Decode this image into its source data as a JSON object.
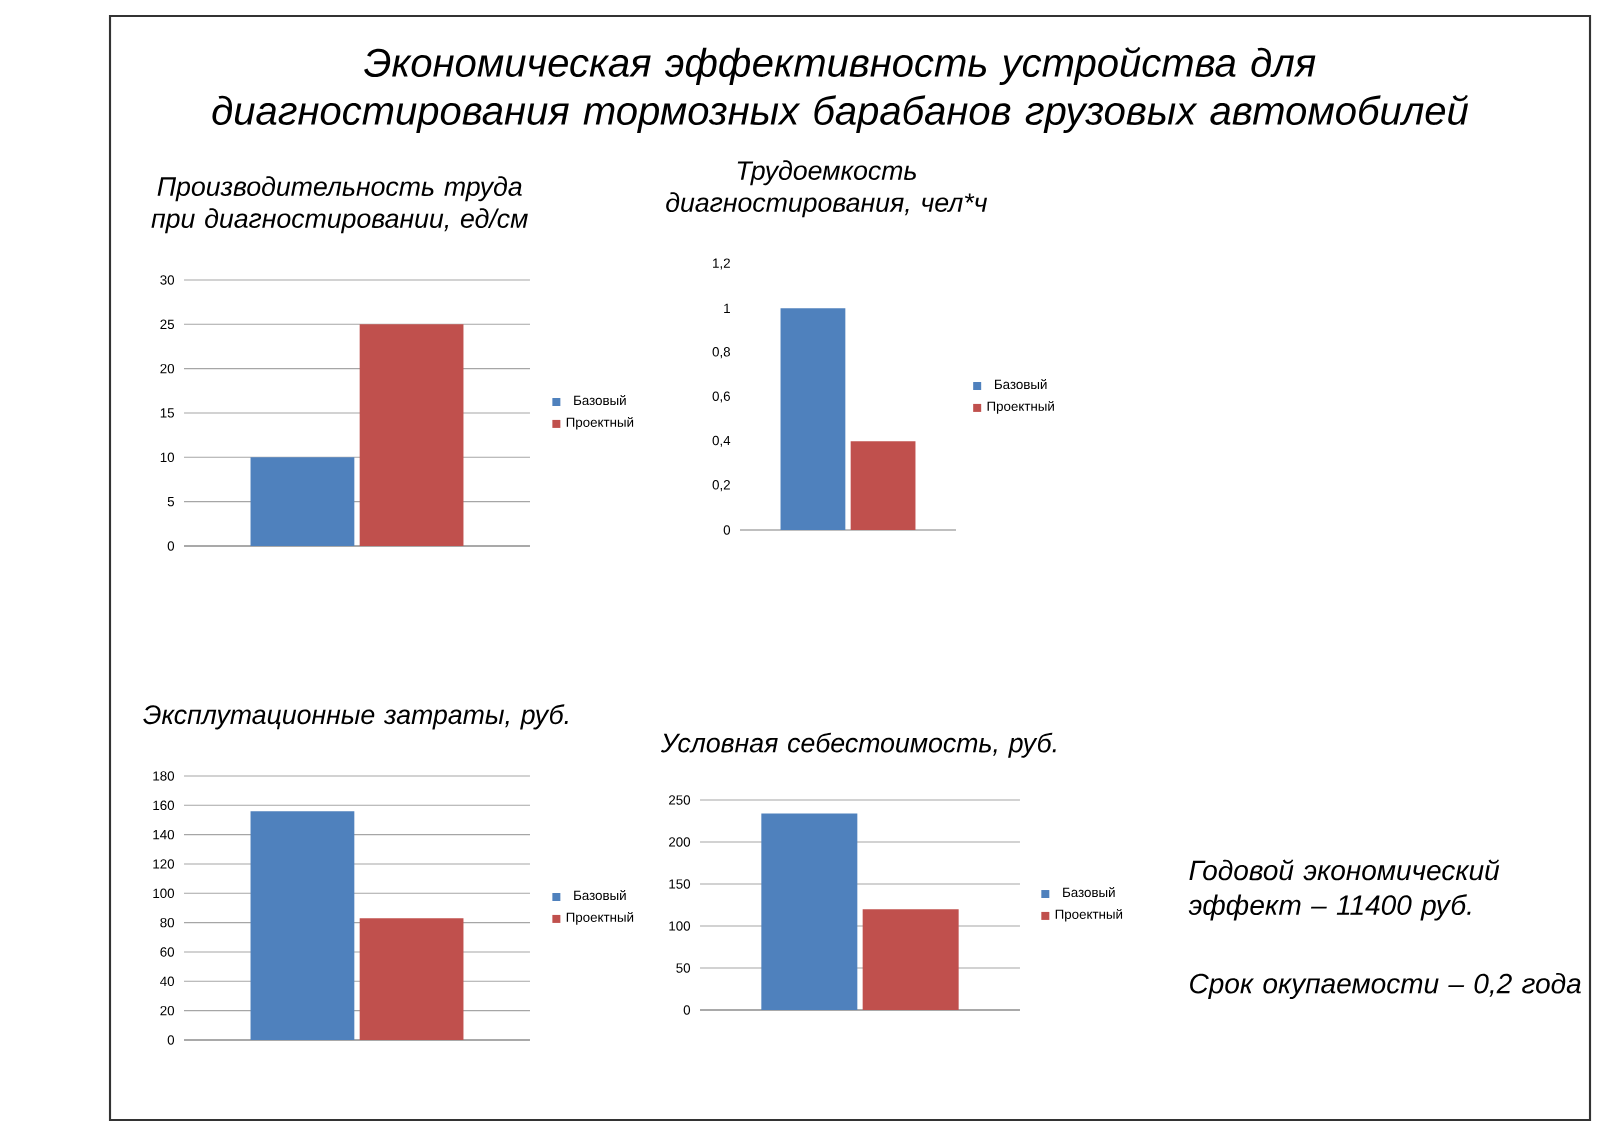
{
  "chart_data": [
    {
      "type": "other",
      "title": "Экономическая эффективность устройства для диагностирования тормозных барабанов грузовых автомобилей",
      "annotations": [
        "Годовой экономический эффект – 11400 руб.",
        "Срок окупаемости – 0,2 года"
      ]
    },
    {
      "type": "bar",
      "title": "Производительность труда при диагностировании, ед/см",
      "categories": [
        null
      ],
      "series": [
        {
          "name": "Базовый",
          "color": "#4f81bd",
          "values": [
            10
          ]
        },
        {
          "name": "Проектный",
          "color": "#c0504d",
          "values": [
            25
          ]
        }
      ],
      "ylim": [
        0,
        30
      ],
      "yticks": [
        0,
        5,
        10,
        15,
        20,
        25,
        30
      ],
      "grid": "y",
      "legend": "right",
      "tick_labels": "y"
    },
    {
      "type": "bar",
      "title": "Трудоемкость диагностирования, чел*ч",
      "categories": [
        null
      ],
      "series": [
        {
          "name": "Базовый",
          "color": "#4f81bd",
          "values": [
            1
          ]
        },
        {
          "name": "Проектный",
          "color": "#c0504d",
          "values": [
            0.4
          ]
        }
      ],
      "ylim": [
        0,
        1.2
      ],
      "yticks": [
        {
          "value": 0,
          "label": "0"
        },
        {
          "value": 0.2,
          "label": "0,2"
        },
        {
          "value": 0.4,
          "label": "0,4"
        },
        {
          "value": 0.6,
          "label": "0,6"
        },
        {
          "value": 0.8,
          "label": "0,8"
        },
        {
          "value": 1,
          "label": "1"
        },
        {
          "value": 1.2,
          "label": "1,2"
        }
      ],
      "legend": "right",
      "tick_labels": "y"
    },
    {
      "type": "bar",
      "title": "Эксплутационные затраты, руб.",
      "categories": [
        null
      ],
      "series": [
        {
          "name": "Базовый",
          "color": "#4f81bd",
          "values": [
            156
          ]
        },
        {
          "name": "Проектный",
          "color": "#c0504d",
          "values": [
            83
          ]
        }
      ],
      "ylim": [
        0,
        180
      ],
      "yticks": [
        0,
        20,
        40,
        60,
        80,
        100,
        120,
        140,
        160,
        180
      ],
      "grid": "y",
      "legend": "right",
      "tick_labels": "y"
    },
    {
      "type": "bar",
      "title": "Условная себестоимость, руб.",
      "categories": [
        null
      ],
      "series": [
        {
          "name": "Базовый",
          "color": "#4f81bd",
          "values": [
            234
          ]
        },
        {
          "name": "Проектный",
          "color": "#c0504d",
          "values": [
            120
          ]
        }
      ],
      "ylim": [
        0,
        250
      ],
      "yticks": [
        0,
        50,
        100,
        150,
        200,
        250
      ],
      "grid": "y",
      "legend": "right",
      "tick_labels": "y"
    }
  ]
}
